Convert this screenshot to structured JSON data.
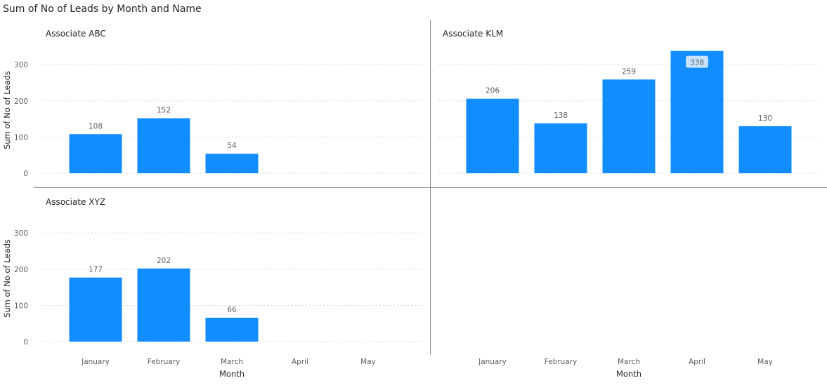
{
  "title": "Sum of No of Leads by Month and Name",
  "chart_data": {
    "type": "bar",
    "title": "Sum of No of Leads by Month and Name",
    "xlabel": "Month",
    "ylabel": "Sum of No of Leads",
    "categories": [
      "January",
      "February",
      "March",
      "April",
      "May"
    ],
    "ylim": [
      0,
      340
    ],
    "yticks": [
      0,
      100,
      200,
      300
    ],
    "grid": true,
    "bar_color": "#118dff",
    "highlight_color": "#c6e2ff",
    "panels": [
      {
        "name": "Associate ABC",
        "values": [
          108,
          152,
          54,
          null,
          null
        ]
      },
      {
        "name": "Associate KLM",
        "values": [
          206,
          138,
          259,
          338,
          130
        ],
        "highlighted_index": 3
      },
      {
        "name": "Associate XYZ",
        "values": [
          177,
          202,
          66,
          null,
          null
        ]
      }
    ]
  }
}
